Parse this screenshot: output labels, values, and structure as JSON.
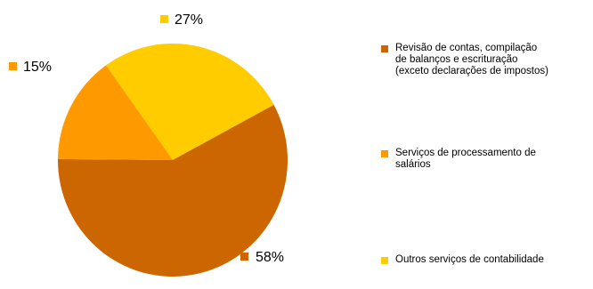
{
  "chart_data": {
    "type": "pie",
    "categories": [
      "Revisão de contas, compilação de balanços e escrituração (exceto declarações de impostos)",
      "Serviços de processamento de salários",
      "Outros serviços de contabilidade"
    ],
    "values": [
      58,
      15,
      27
    ],
    "data_labels": [
      "58%",
      "15%",
      "27%"
    ],
    "colors": [
      "#CC6600",
      "#FF9900",
      "#FFCC00"
    ],
    "legend": {
      "placement": "right",
      "entries": [
        {
          "text": "Revisão de contas, compilação\nde balanços e escrituração\n(exceto declarações de impostos)",
          "color": "#CC6600"
        },
        {
          "text": "Serviços de processamento de\nsalários",
          "color": "#FF9900"
        },
        {
          "text": "Outros serviços de contabilidade",
          "color": "#FFCC00"
        }
      ]
    }
  }
}
